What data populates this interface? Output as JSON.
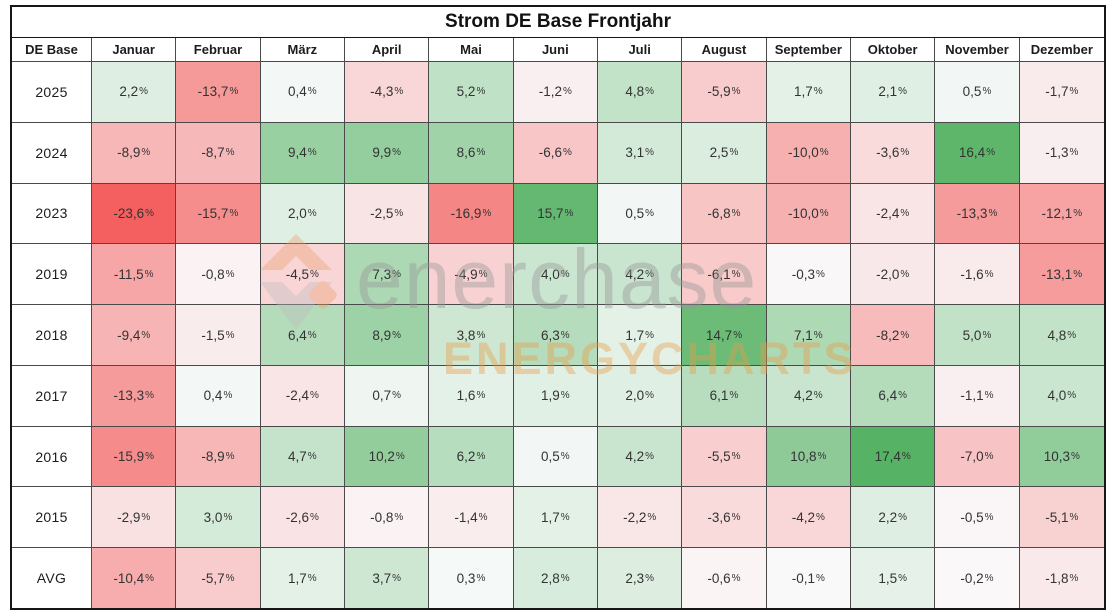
{
  "title": "Strom DE Base Frontjahr",
  "watermark": {
    "brand": "enerchase",
    "subtitle": "ENERGYCHARTS"
  },
  "chart_data": {
    "type": "heatmap",
    "title": "Strom DE Base Frontjahr",
    "corner_label": "DE Base",
    "columns": [
      "Januar",
      "Februar",
      "März",
      "April",
      "Mai",
      "Juni",
      "Juli",
      "August",
      "September",
      "Oktober",
      "November",
      "Dezember"
    ],
    "rows": [
      "2025",
      "2024",
      "2023",
      "2019",
      "2018",
      "2017",
      "2016",
      "2015",
      "AVG"
    ],
    "values": [
      [
        2.2,
        -13.7,
        0.4,
        -4.3,
        5.2,
        -1.2,
        4.8,
        -5.9,
        1.7,
        2.1,
        0.5,
        -1.7
      ],
      [
        -8.9,
        -8.7,
        9.4,
        9.9,
        8.6,
        -6.6,
        3.1,
        2.5,
        -10.0,
        -3.6,
        16.4,
        -1.3
      ],
      [
        -23.6,
        -15.7,
        2.0,
        -2.5,
        -16.9,
        15.7,
        0.5,
        -6.8,
        -10.0,
        -2.4,
        -13.3,
        -12.1
      ],
      [
        -11.5,
        -0.8,
        -4.5,
        7.3,
        -4.9,
        4.0,
        4.2,
        -6.1,
        -0.3,
        -2.0,
        -1.6,
        -13.1
      ],
      [
        -9.4,
        -1.5,
        6.4,
        8.9,
        3.8,
        6.3,
        1.7,
        14.7,
        7.1,
        -8.2,
        5.0,
        4.8
      ],
      [
        -13.3,
        0.4,
        -2.4,
        0.7,
        1.6,
        1.9,
        2.0,
        6.1,
        4.2,
        6.4,
        -1.1,
        4.0
      ],
      [
        -15.9,
        -8.9,
        4.7,
        10.2,
        6.2,
        0.5,
        4.2,
        -5.5,
        10.8,
        17.4,
        -7.0,
        10.3
      ],
      [
        -2.9,
        3.0,
        -2.6,
        -0.8,
        -1.4,
        1.7,
        -2.2,
        -3.6,
        -4.2,
        2.2,
        -0.5,
        -5.1
      ],
      [
        -10.4,
        -5.7,
        1.7,
        3.7,
        0.3,
        2.8,
        2.3,
        -0.6,
        -0.1,
        1.5,
        -0.2,
        -1.8
      ]
    ],
    "value_format": "german-percent-1-decimal",
    "color_scale": {
      "neutral": "#fafbfc",
      "positive": "#56b264",
      "negative": "#f45f5f",
      "positive_limit": 17.4,
      "negative_limit": 23.6,
      "gamma": 0.85
    },
    "legend": "none",
    "grid": "on"
  }
}
